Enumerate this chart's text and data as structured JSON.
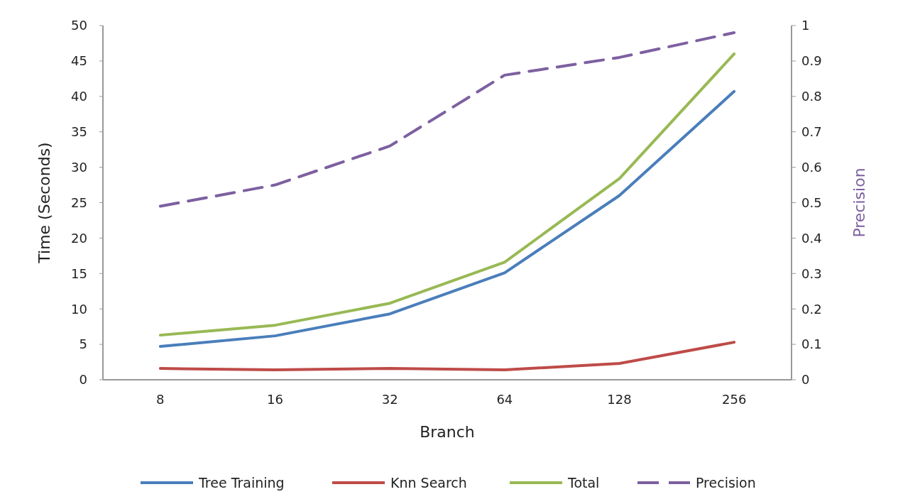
{
  "chart_data": {
    "type": "line",
    "xlabel": "Branch",
    "ylabel": "Time (Seconds)",
    "y2label": "Precision",
    "categories": [
      "8",
      "16",
      "32",
      "64",
      "128",
      "256"
    ],
    "series": [
      {
        "name": "Tree Training",
        "color": "#4a7ebb",
        "values": [
          4.7,
          6.2,
          9.3,
          15.1,
          26.0,
          40.7
        ]
      },
      {
        "name": "Knn Search",
        "color": "#be4b48",
        "values": [
          1.6,
          1.4,
          1.6,
          1.4,
          2.3,
          5.3
        ]
      },
      {
        "name": "Total",
        "color": "#98b954",
        "values": [
          6.3,
          7.7,
          10.8,
          16.6,
          28.4,
          46.0
        ]
      },
      {
        "name": "Precision",
        "color": "#7d60a0",
        "axis": "y2",
        "line_style": "dashed",
        "values": [
          0.49,
          0.55,
          0.66,
          0.86,
          0.91,
          0.98
        ]
      }
    ],
    "ylim": [
      0,
      50
    ],
    "yticks": [
      0,
      5,
      10,
      15,
      20,
      25,
      30,
      35,
      40,
      45,
      50
    ],
    "y2lim": [
      0,
      1
    ],
    "y2ticks": [
      0,
      0.1,
      0.2,
      0.3,
      0.4,
      0.5,
      0.6,
      0.7,
      0.8,
      0.9,
      1
    ],
    "grid": false,
    "legend": "bottom",
    "marker": "none",
    "line_style": "solid"
  }
}
